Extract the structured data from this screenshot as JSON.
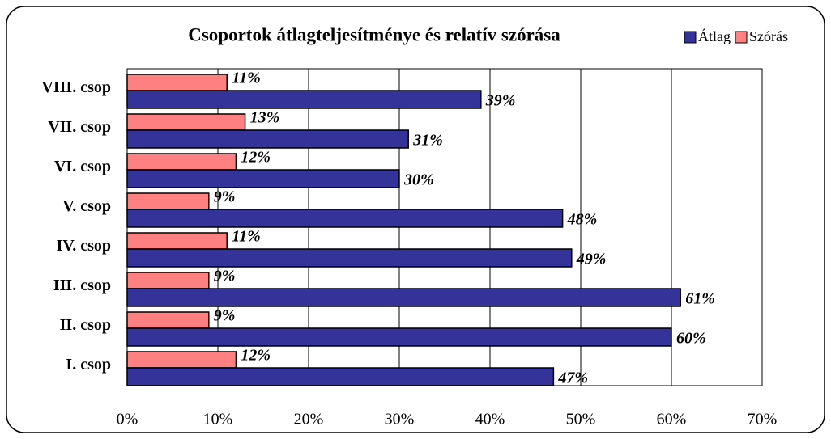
{
  "chart_data": {
    "type": "bar",
    "orientation": "horizontal",
    "title": "Csoportok átlagteljesítménye és relatív szórása",
    "categories": [
      "I. csop",
      "II. csop",
      "III. csop",
      "IV. csop",
      "V. csop",
      "VI. csop",
      "VII. csop",
      "VIII. csop"
    ],
    "series": [
      {
        "name": "Átlag",
        "color": "#333399",
        "values": [
          47,
          60,
          61,
          49,
          48,
          30,
          31,
          39
        ],
        "value_labels": [
          "47%",
          "60%",
          "61%",
          "49%",
          "48%",
          "30%",
          "31%",
          "39%"
        ]
      },
      {
        "name": "Szórás",
        "color": "#ff8080",
        "values": [
          12,
          9,
          9,
          11,
          9,
          12,
          13,
          11
        ],
        "value_labels": [
          "12%",
          "9%",
          "9%",
          "11%",
          "9%",
          "12%",
          "13%",
          "11%"
        ]
      }
    ],
    "xlim": [
      0,
      70
    ],
    "xticks": [
      {
        "value": 0,
        "label": "0%"
      },
      {
        "value": 10,
        "label": "10%"
      },
      {
        "value": 20,
        "label": "20%"
      },
      {
        "value": 30,
        "label": "30%"
      },
      {
        "value": 40,
        "label": "40%"
      },
      {
        "value": 50,
        "label": "50%"
      },
      {
        "value": 60,
        "label": "60%"
      },
      {
        "value": 70,
        "label": "70%"
      }
    ],
    "grid": true,
    "legend": "top-right"
  }
}
